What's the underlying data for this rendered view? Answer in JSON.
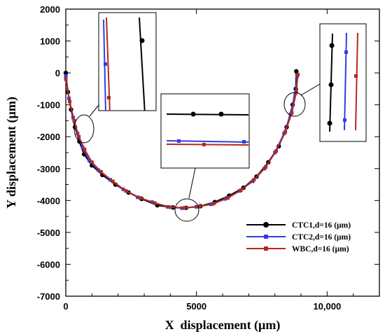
{
  "chart_data": {
    "type": "line",
    "xlabel": "X  displacement (µm)",
    "ylabel": "Y displacement (µm)",
    "xlim": [
      0,
      12000
    ],
    "ylim": [
      -7000,
      2000
    ],
    "xticks": [
      0,
      5000,
      10000
    ],
    "xtick_labels": [
      "0",
      "5000",
      "10,000"
    ],
    "yticks": [
      2000,
      1000,
      0,
      -1000,
      -2000,
      -3000,
      -4000,
      -5000,
      -6000,
      -7000
    ],
    "ytick_labels": [
      "2000",
      "1000",
      "0",
      "-1000",
      "-2000",
      "-3000",
      "-4000",
      "-5000",
      "-6000",
      "-7000"
    ],
    "legend_position": "bottom-right",
    "series": [
      {
        "name": "CTC1,d=16 (µm)",
        "color": "#000000",
        "marker": "circle",
        "x": [
          0,
          80,
          200,
          350,
          520,
          700,
          1000,
          1400,
          1900,
          2400,
          2900,
          3500,
          4100,
          4600,
          5150,
          5700,
          6250,
          6800,
          7300,
          7750,
          8150,
          8450,
          8680,
          8800,
          8820
        ],
        "y": [
          0,
          -600,
          -1150,
          -1700,
          -2150,
          -2550,
          -2900,
          -3200,
          -3500,
          -3750,
          -3950,
          -4150,
          -4220,
          -4230,
          -4180,
          -4050,
          -3850,
          -3600,
          -3250,
          -2800,
          -2300,
          -1700,
          -1000,
          -500,
          50
        ]
      },
      {
        "name": "CTC2,d=16 (µm)",
        "color": "#2f3fe0",
        "marker": "square",
        "x": [
          0,
          120,
          280,
          450,
          650,
          900,
          1250,
          1700,
          2200,
          2750,
          3300,
          3900,
          4450,
          5000,
          5550,
          6100,
          6650,
          7150,
          7600,
          8000,
          8350,
          8600,
          8780,
          8850
        ],
        "y": [
          -100,
          -800,
          -1400,
          -1900,
          -2350,
          -2750,
          -3050,
          -3350,
          -3650,
          -3900,
          -4050,
          -4200,
          -4240,
          -4200,
          -4120,
          -3950,
          -3700,
          -3400,
          -3000,
          -2500,
          -1900,
          -1300,
          -650,
          -100
        ]
      },
      {
        "name": "WBC,d=16 (µm)",
        "color": "#b5281e",
        "marker": "square",
        "x": [
          0,
          150,
          320,
          500,
          720,
          1000,
          1350,
          1800,
          2300,
          2850,
          3400,
          4000,
          4550,
          5100,
          5650,
          6200,
          6700,
          7200,
          7650,
          8050,
          8400,
          8650,
          8820,
          8880
        ],
        "y": [
          -200,
          -900,
          -1500,
          -2000,
          -2400,
          -2800,
          -3100,
          -3400,
          -3700,
          -3920,
          -4080,
          -4210,
          -4230,
          -4190,
          -4100,
          -3920,
          -3680,
          -3350,
          -2950,
          -2450,
          -1850,
          -1250,
          -600,
          -50
        ]
      }
    ]
  }
}
